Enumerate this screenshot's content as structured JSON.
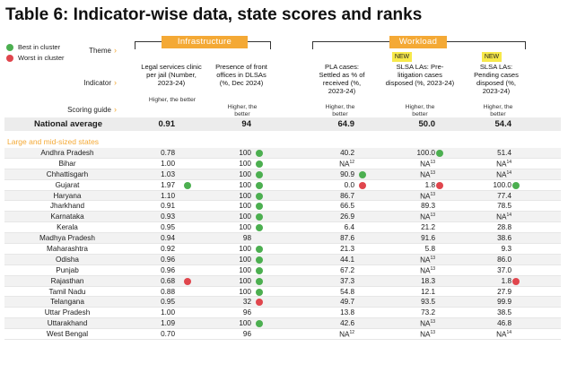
{
  "title": "Table 6: Indicator-wise data, state scores and ranks",
  "legend": {
    "best": "Best in cluster",
    "worst": "Worst in cluster"
  },
  "row_labels": {
    "theme": "Theme",
    "indicator": "Indicator",
    "scoring": "Scoring guide"
  },
  "themes": {
    "infrastructure": "Infrastructure",
    "workload": "Workload"
  },
  "new_badge": "NEW",
  "columns": [
    {
      "indicator": "Legal services clinic per jail (Number, 2023-24)",
      "scoring": "Higher, the better"
    },
    {
      "indicator": "Presence of front offices in DLSAs (%, Dec 2024)",
      "scoring": "Higher, the better"
    },
    {
      "indicator": "PLA cases: Settled as % of received (%, 2023-24)",
      "scoring": "Higher, the better"
    },
    {
      "indicator": "SLSA LAs: Pre-litigation cases disposed (%, 2023-24)",
      "scoring": "Higher, the better"
    },
    {
      "indicator": "SLSA LAs: Pending cases disposed (%, 2023-24)",
      "scoring": "Higher, the better"
    }
  ],
  "national": {
    "label": "National average",
    "values": [
      "0.91",
      "94",
      "64.9",
      "50.0",
      "54.4"
    ]
  },
  "section_label": "Large and mid-sized states",
  "rows": [
    {
      "state": "Andhra Pradesh",
      "v": [
        [
          "0.78",
          ""
        ],
        [
          "100",
          "best"
        ],
        [
          "40.2",
          ""
        ],
        [
          "100.0",
          "best"
        ],
        [
          "51.4",
          ""
        ]
      ]
    },
    {
      "state": "Bihar",
      "v": [
        [
          "1.00",
          ""
        ],
        [
          "100",
          "best"
        ],
        [
          "NA",
          "",
          "12"
        ],
        [
          "NA",
          "",
          "13"
        ],
        [
          "NA",
          "",
          "14"
        ]
      ]
    },
    {
      "state": "Chhattisgarh",
      "v": [
        [
          "1.03",
          ""
        ],
        [
          "100",
          "best"
        ],
        [
          "90.9",
          "best"
        ],
        [
          "NA",
          "",
          "13"
        ],
        [
          "NA",
          "",
          "14"
        ]
      ]
    },
    {
      "state": "Gujarat",
      "v": [
        [
          "1.97",
          "best"
        ],
        [
          "100",
          "best"
        ],
        [
          "0.0",
          "worst"
        ],
        [
          "1.8",
          "worst"
        ],
        [
          "100.0",
          "best"
        ]
      ]
    },
    {
      "state": "Haryana",
      "v": [
        [
          "1.10",
          ""
        ],
        [
          "100",
          "best"
        ],
        [
          "86.7",
          ""
        ],
        [
          "NA",
          "",
          "13"
        ],
        [
          "77.4",
          ""
        ]
      ]
    },
    {
      "state": "Jharkhand",
      "v": [
        [
          "0.91",
          ""
        ],
        [
          "100",
          "best"
        ],
        [
          "66.5",
          ""
        ],
        [
          "89.3",
          ""
        ],
        [
          "78.5",
          ""
        ]
      ]
    },
    {
      "state": "Karnataka",
      "v": [
        [
          "0.93",
          ""
        ],
        [
          "100",
          "best"
        ],
        [
          "26.9",
          ""
        ],
        [
          "NA",
          "",
          "13"
        ],
        [
          "NA",
          "",
          "14"
        ]
      ]
    },
    {
      "state": "Kerala",
      "v": [
        [
          "0.95",
          ""
        ],
        [
          "100",
          "best"
        ],
        [
          "6.4",
          ""
        ],
        [
          "21.2",
          ""
        ],
        [
          "28.8",
          ""
        ]
      ]
    },
    {
      "state": "Madhya Pradesh",
      "v": [
        [
          "0.94",
          ""
        ],
        [
          "98",
          ""
        ],
        [
          "87.6",
          ""
        ],
        [
          "91.6",
          ""
        ],
        [
          "38.6",
          ""
        ]
      ]
    },
    {
      "state": "Maharashtra",
      "v": [
        [
          "0.92",
          ""
        ],
        [
          "100",
          "best"
        ],
        [
          "21.3",
          ""
        ],
        [
          "5.8",
          ""
        ],
        [
          "9.3",
          ""
        ]
      ]
    },
    {
      "state": "Odisha",
      "v": [
        [
          "0.96",
          ""
        ],
        [
          "100",
          "best"
        ],
        [
          "44.1",
          ""
        ],
        [
          "NA",
          "",
          "13"
        ],
        [
          "86.0",
          ""
        ]
      ]
    },
    {
      "state": "Punjab",
      "v": [
        [
          "0.96",
          ""
        ],
        [
          "100",
          "best"
        ],
        [
          "67.2",
          ""
        ],
        [
          "NA",
          "",
          "13"
        ],
        [
          "37.0",
          ""
        ]
      ]
    },
    {
      "state": "Rajasthan",
      "v": [
        [
          "0.68",
          "worst"
        ],
        [
          "100",
          "best"
        ],
        [
          "37.3",
          ""
        ],
        [
          "18.3",
          ""
        ],
        [
          "1.8",
          "worst"
        ]
      ]
    },
    {
      "state": "Tamil Nadu",
      "v": [
        [
          "0.88",
          ""
        ],
        [
          "100",
          "best"
        ],
        [
          "54.8",
          ""
        ],
        [
          "12.1",
          ""
        ],
        [
          "27.9",
          ""
        ]
      ]
    },
    {
      "state": "Telangana",
      "v": [
        [
          "0.95",
          ""
        ],
        [
          "32",
          "worst"
        ],
        [
          "49.7",
          ""
        ],
        [
          "93.5",
          ""
        ],
        [
          "99.9",
          ""
        ]
      ]
    },
    {
      "state": "Uttar Pradesh",
      "v": [
        [
          "1.00",
          ""
        ],
        [
          "96",
          ""
        ],
        [
          "13.8",
          ""
        ],
        [
          "73.2",
          ""
        ],
        [
          "38.5",
          ""
        ]
      ]
    },
    {
      "state": "Uttarakhand",
      "v": [
        [
          "1.09",
          ""
        ],
        [
          "100",
          "best"
        ],
        [
          "42.6",
          ""
        ],
        [
          "NA",
          "",
          "13"
        ],
        [
          "46.8",
          ""
        ]
      ]
    },
    {
      "state": "West Bengal",
      "v": [
        [
          "0.70",
          ""
        ],
        [
          "96",
          ""
        ],
        [
          "NA",
          "",
          "12"
        ],
        [
          "NA",
          "",
          "13"
        ],
        [
          "NA",
          "",
          "14"
        ]
      ]
    }
  ]
}
